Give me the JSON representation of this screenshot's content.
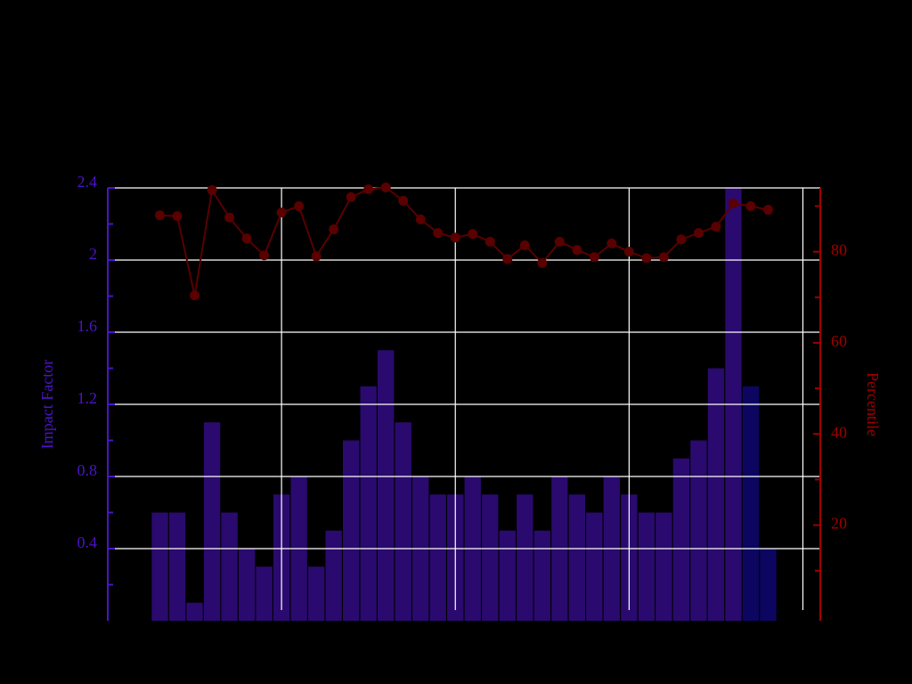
{
  "chart_data": {
    "type": "bar-line",
    "y_label": "Impact Factor",
    "y2_label": "Percentile",
    "x": [
      0,
      1,
      2,
      3,
      4,
      5,
      6,
      7,
      8,
      9,
      10,
      11,
      12,
      13,
      14,
      15,
      16,
      17,
      18,
      19,
      20,
      21,
      22,
      23,
      24,
      25,
      26,
      27,
      28,
      29,
      30,
      31,
      32,
      33,
      34,
      35
    ],
    "xlim": [
      -3,
      38
    ],
    "xticks": [
      7,
      17,
      27,
      37
    ],
    "ylim": [
      0,
      2.4
    ],
    "yticks": [
      0.4,
      0.8,
      1.2,
      1.6,
      2,
      2.4
    ],
    "y2lim": [
      -1,
      94
    ],
    "y2ticks": [
      20,
      40,
      60,
      80
    ],
    "grid": true,
    "y_axis_color": "#4b14c8",
    "y2_axis_color": "#a00000",
    "series": [
      {
        "type": "bar",
        "color": "#2a0a6e",
        "colors": [
          "#2a0a6e",
          "#2a0a6e",
          "#2a0a6e",
          "#2a0a6e",
          "#2a0a6e",
          "#2a0a6e",
          "#2a0a6e",
          "#2a0a6e",
          "#2a0a6e",
          "#2a0a6e",
          "#2a0a6e",
          "#2a0a6e",
          "#2a0a6e",
          "#2a0a6e",
          "#2a0a6e",
          "#2a0a6e",
          "#2a0a6e",
          "#2a0a6e",
          "#2a0a6e",
          "#2a0a6e",
          "#2a0a6e",
          "#2a0a6e",
          "#2a0a6e",
          "#2a0a6e",
          "#2a0a6e",
          "#2a0a6e",
          "#2a0a6e",
          "#2a0a6e",
          "#2a0a6e",
          "#2a0a6e",
          "#2a0a6e",
          "#2a0a6e",
          "#2a0a6e",
          "#2a0a6e",
          "#0c0660",
          "#0c0660"
        ],
        "values": [
          0.6,
          0.6,
          0.1,
          1.1,
          0.6,
          0.4,
          0.3,
          0.7,
          0.8,
          0.3,
          0.5,
          1.0,
          1.3,
          1.5,
          1.1,
          0.8,
          0.7,
          0.7,
          0.8,
          0.7,
          0.5,
          0.7,
          0.5,
          0.8,
          0.7,
          0.6,
          0.8,
          0.7,
          0.6,
          0.6,
          0.9,
          1.0,
          1.4,
          2.4,
          1.3,
          0.4
        ]
      },
      {
        "type": "line",
        "axis": "y2",
        "color": "#5a0000",
        "values": [
          88,
          87.8,
          70.4,
          93.5,
          87.5,
          82.9,
          79.2,
          88.6,
          90,
          79,
          84.9,
          92,
          93.7,
          94.1,
          91.2,
          87.1,
          84.1,
          83.1,
          83.9,
          82.2,
          78.4,
          81.4,
          77.5,
          82.2,
          80.4,
          78.8,
          81.8,
          80,
          78.6,
          78.8,
          82.7,
          84.1,
          85.5,
          90.6,
          90,
          89.2
        ]
      }
    ]
  }
}
